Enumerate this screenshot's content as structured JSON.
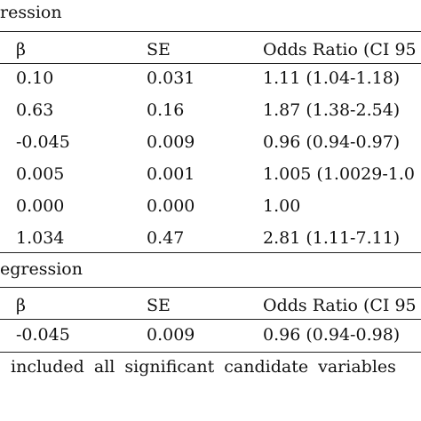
{
  "sections": [
    {
      "title": "ression",
      "headers": [
        "β",
        "SE",
        "Odds Ratio (CI 95"
      ],
      "rows": [
        [
          "0.10",
          "0.031",
          "1.11 (1.04-1.18)"
        ],
        [
          "0.63",
          "0.16",
          "1.87 (1.38-2.54)"
        ],
        [
          "-0.045",
          "0.009",
          "0.96 (0.94-0.97)"
        ],
        [
          "0.005",
          "0.001",
          "1.005 (1.0029-1.0"
        ],
        [
          "0.000",
          "0.000",
          "1.00"
        ],
        [
          "1.034",
          "0.47",
          "2.81 (1.11-7.11)"
        ]
      ]
    },
    {
      "title": "egression",
      "headers": [
        "β",
        "SE",
        "Odds Ratio (CI 95"
      ],
      "rows": [
        [
          "-0.045",
          "0.009",
          "0.96 (0.94-0.98)"
        ]
      ]
    }
  ],
  "footnote": "included all significant candidate variables"
}
